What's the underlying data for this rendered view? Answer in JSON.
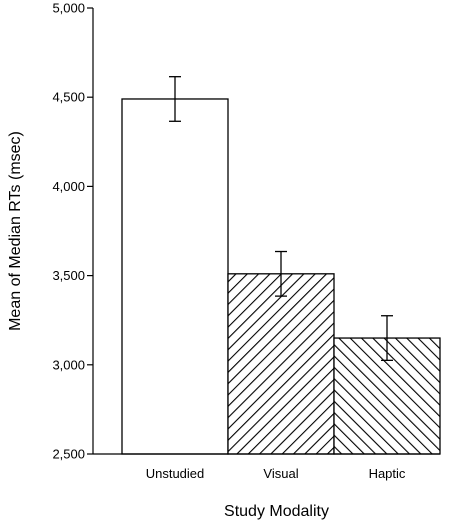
{
  "chart_data": {
    "type": "bar",
    "title": "",
    "xlabel": "Study Modality",
    "ylabel": "Mean of Median RTs (msec)",
    "categories": [
      "Unstudied",
      "Visual",
      "Haptic"
    ],
    "values": [
      4490,
      3510,
      3150
    ],
    "error": [
      125,
      125,
      125
    ],
    "fills": [
      "white",
      "hatch-forward",
      "hatch-back"
    ],
    "ylim": [
      2500,
      5000
    ],
    "yticks": [
      2500,
      3000,
      3500,
      4000,
      4500,
      5000
    ],
    "ytick_labels": [
      "2,500",
      "3,000",
      "3,500",
      "4,000",
      "4,500",
      "5,000"
    ],
    "grid": false,
    "legend": "none",
    "colors": {
      "bar_stroke": "#000000",
      "background": "#ffffff"
    }
  }
}
